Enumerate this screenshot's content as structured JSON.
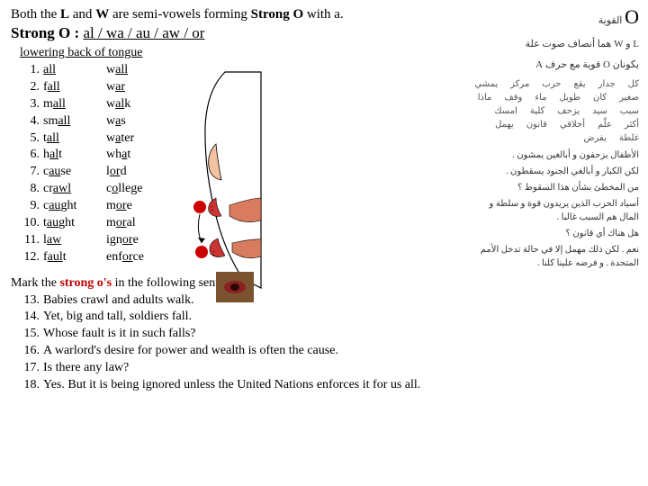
{
  "intro": {
    "pre": "Both the ",
    "l": "L",
    "and": " and ",
    "w": "W",
    "post": " are semi-vowels forming ",
    "so": "Strong O",
    "end": " with a."
  },
  "strongO": {
    "label": "Strong O : ",
    "suffixes": "al / wa / au / aw / or"
  },
  "lowering": "lowering back of tongue",
  "words": [
    {
      "n": "1.",
      "a_pre": "",
      "a_ul": "all",
      "a_post": "",
      "b_pre": "w",
      "b_ul": "all",
      "b_post": ""
    },
    {
      "n": "2.",
      "a_pre": "f",
      "a_ul": "all",
      "a_post": "",
      "b_pre": "w",
      "b_ul": "ar",
      "b_post": ""
    },
    {
      "n": "3.",
      "a_pre": "m",
      "a_ul": "all",
      "a_post": "",
      "b_pre": "w",
      "b_ul": "al",
      "b_post": "k"
    },
    {
      "n": "4.",
      "a_pre": "sm",
      "a_ul": "all",
      "a_post": "",
      "b_pre": "w",
      "b_ul": "a",
      "b_post": "s"
    },
    {
      "n": "5.",
      "a_pre": "t",
      "a_ul": "all",
      "a_post": "",
      "b_pre": "w",
      "b_ul": "a",
      "b_post": "ter"
    },
    {
      "n": "6.",
      "a_pre": "h",
      "a_ul": "al",
      "a_post": "t",
      "b_pre": "wh",
      "b_ul": "a",
      "b_post": "t"
    },
    {
      "n": "7.",
      "a_pre": "c",
      "a_ul": "au",
      "a_post": "se",
      "b_pre": "l",
      "b_ul": "or",
      "b_post": "d"
    },
    {
      "n": "8.",
      "a_pre": "cr",
      "a_ul": "awl",
      "a_post": "",
      "b_pre": "c",
      "b_ul": "o",
      "b_post": "llege"
    },
    {
      "n": "9.",
      "a_pre": "c",
      "a_ul": "au",
      "a_post": "ght",
      "b_pre": "m",
      "b_ul": "or",
      "b_post": "e"
    },
    {
      "n": "10.",
      "a_pre": "t",
      "a_ul": "au",
      "a_post": "ght",
      "b_pre": "m",
      "b_ul": "or",
      "b_post": "al"
    },
    {
      "n": "11.",
      "a_pre": "l",
      "a_ul": "aw",
      "a_post": "",
      "b_pre": "ign",
      "b_ul": "or",
      "b_post": "e"
    },
    {
      "n": "12.",
      "a_pre": "f",
      "a_ul": "aul",
      "a_post": "t",
      "b_pre": "enf",
      "b_ul": "or",
      "b_post": "ce"
    }
  ],
  "mark": {
    "prefix": "Mark the ",
    "red": "strong o's",
    "suffix": " in the following sentences:"
  },
  "sentences": [
    {
      "n": "13.",
      "t": "Babies crawl and adults walk."
    },
    {
      "n": "14.",
      "t": "Yet, big and tall, soldiers fall."
    },
    {
      "n": "15.",
      "t": "Whose fault is it in such falls?"
    },
    {
      "n": "16.",
      "t": "A warlord's desire for power and wealth is often the cause."
    },
    {
      "n": "17.",
      "t": "Is there any law?"
    },
    {
      "n": "18.",
      "t": "Yes.  But it is being ignored unless the United Nations enforces it for us all."
    }
  ],
  "arabic": {
    "bigO": "O",
    "line1": "القوية",
    "line2": "L و W هما أنصاف صوت علة",
    "line3": "يكونان O قوية مع حرف A",
    "words": [
      "كل",
      "جدار",
      "يقع",
      "حرب",
      "مركز",
      "يمشي",
      "صغير",
      "كان",
      "طويل",
      "ماء",
      "وقف",
      "ماذا",
      "سبب",
      "سيد",
      "يزحف",
      "كلية",
      "امسك",
      "أكثر",
      "علّم",
      "أخلاقي",
      "قانون",
      "يهمل",
      "غلطة",
      "يفرض"
    ],
    "s1": "الأطفال يزحفون و أبالغين يمشون .",
    "s2": "لكن الكبار و أبالغي الجنود يسقطون .",
    "s3": "من المخطئ بشأن هذا السقوط ؟",
    "s4": "أسياد الحرب الذين يريدون قوة و سلطة و المال هم السبب غالبا .",
    "s5": "هل هناك أي قانون ؟",
    "s6": "نعم . لكن ذلك مهمل إلا في حالة تدخل الأمم المتحدة . و فرضه علينا كلنا ."
  },
  "diagram": {
    "face_stroke": "#000000",
    "nose_fill": "#f4c2a0",
    "lips_fill": "#cc3333",
    "tongue_fill": "#d97b5e",
    "o_fill": "#cc0000",
    "photo_bg": "#7a5230",
    "photo_lips": "#8b2020"
  }
}
